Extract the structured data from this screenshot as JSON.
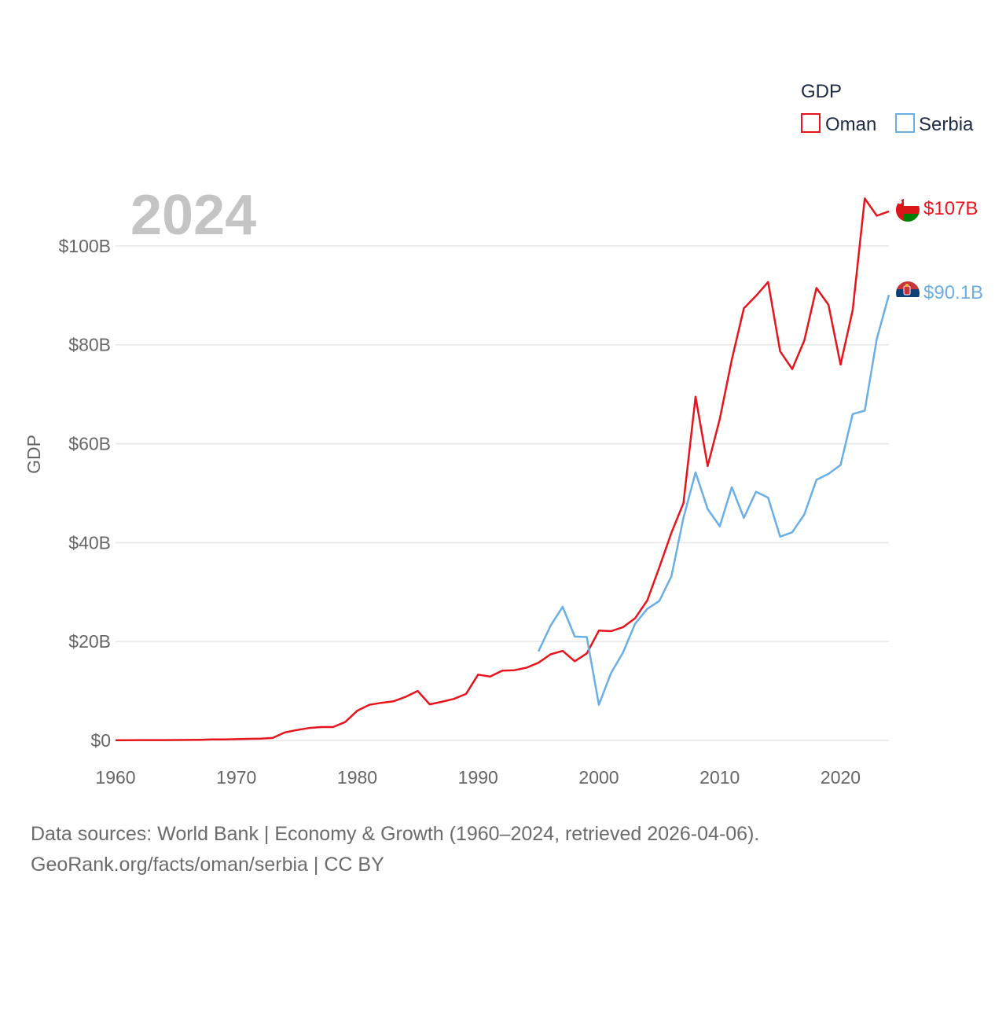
{
  "chart_data": {
    "type": "line",
    "title": "GDP",
    "ylabel": "GDP",
    "xlabel": "",
    "year_label": "2024",
    "xlim": [
      1960,
      2024
    ],
    "ylim": [
      0,
      110
    ],
    "x_ticks": [
      1960,
      1970,
      1980,
      1990,
      2000,
      2010,
      2020
    ],
    "x_tick_labels": [
      "1960",
      "1970",
      "1980",
      "1990",
      "2000",
      "2010",
      "2020"
    ],
    "y_ticks": [
      0,
      20,
      40,
      60,
      80,
      100
    ],
    "y_tick_labels": [
      "$0",
      "$20B",
      "$40B",
      "$60B",
      "$80B",
      "$100B"
    ],
    "legend": {
      "title": "GDP",
      "position": "top-right"
    },
    "grid": true,
    "units": "billions USD",
    "series": [
      {
        "name": "Oman",
        "color": "#e8141b",
        "end_label": "$107B",
        "flag": "oman-flag-icon",
        "x": [
          1960,
          1961,
          1962,
          1963,
          1964,
          1965,
          1966,
          1967,
          1968,
          1969,
          1970,
          1971,
          1972,
          1973,
          1974,
          1975,
          1976,
          1977,
          1978,
          1979,
          1980,
          1981,
          1982,
          1983,
          1984,
          1985,
          1986,
          1987,
          1988,
          1989,
          1990,
          1991,
          1992,
          1993,
          1994,
          1995,
          1996,
          1997,
          1998,
          1999,
          2000,
          2001,
          2002,
          2003,
          2004,
          2005,
          2006,
          2007,
          2008,
          2009,
          2010,
          2011,
          2012,
          2013,
          2014,
          2015,
          2016,
          2017,
          2018,
          2019,
          2020,
          2021,
          2022,
          2023,
          2024
        ],
        "values": [
          0.05,
          0.05,
          0.06,
          0.07,
          0.07,
          0.08,
          0.09,
          0.13,
          0.19,
          0.21,
          0.26,
          0.32,
          0.37,
          0.5,
          1.6,
          2.1,
          2.5,
          2.7,
          2.7,
          3.7,
          6.0,
          7.2,
          7.6,
          7.9,
          8.8,
          10.0,
          7.3,
          7.8,
          8.4,
          9.4,
          13.3,
          12.9,
          14.1,
          14.2,
          14.7,
          15.7,
          17.4,
          18.1,
          16.0,
          17.6,
          22.2,
          22.1,
          22.9,
          24.7,
          28.3,
          35.0,
          42.0,
          48.0,
          69.5,
          55.5,
          65.0,
          77.0,
          87.4,
          89.9,
          92.7,
          78.7,
          75.1,
          80.9,
          91.5,
          88.1,
          76.0,
          87.0,
          109.6,
          106.1,
          107.0
        ]
      },
      {
        "name": "Serbia",
        "color": "#6aaee6",
        "end_label": "$90.1B",
        "flag": "serbia-flag-icon",
        "x": [
          1995,
          1996,
          1997,
          1998,
          1999,
          2000,
          2001,
          2002,
          2003,
          2004,
          2005,
          2006,
          2007,
          2008,
          2009,
          2010,
          2011,
          2012,
          2013,
          2014,
          2015,
          2016,
          2017,
          2018,
          2019,
          2020,
          2021,
          2022,
          2023,
          2024
        ],
        "values": [
          18.0,
          23.2,
          27.0,
          21.0,
          20.9,
          7.2,
          13.6,
          17.8,
          23.6,
          26.6,
          28.2,
          33.2,
          45.0,
          54.2,
          46.8,
          43.3,
          51.2,
          45.0,
          50.3,
          49.1,
          41.2,
          42.1,
          45.7,
          52.7,
          53.9,
          55.7,
          66.0,
          66.7,
          81.2,
          90.1
        ]
      }
    ]
  },
  "footer": {
    "line1": "Data sources: World Bank | Economy & Growth (1960–2024, retrieved 2026-04-06).",
    "line2": "GeoRank.org/facts/oman/serbia | CC BY"
  }
}
